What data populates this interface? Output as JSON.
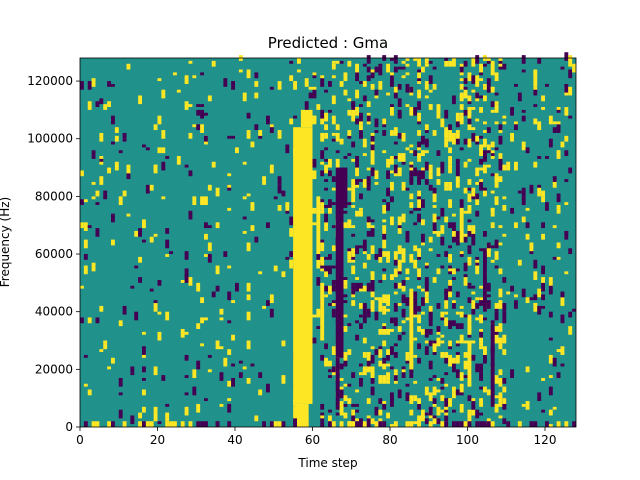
{
  "chart_data": {
    "type": "heatmap",
    "title": "Predicted : Gma",
    "xlabel": "Time step",
    "ylabel": "Frequency (Hz)",
    "xlim": [
      0,
      128
    ],
    "ylim": [
      0,
      128000
    ],
    "x_ticks": [
      {
        "value": 0,
        "label": "0"
      },
      {
        "value": 20,
        "label": "20"
      },
      {
        "value": 40,
        "label": "40"
      },
      {
        "value": 60,
        "label": "60"
      },
      {
        "value": 80,
        "label": "80"
      },
      {
        "value": 100,
        "label": "100"
      },
      {
        "value": 120,
        "label": "120"
      }
    ],
    "y_ticks": [
      {
        "value": 0,
        "label": "0"
      },
      {
        "value": 20000,
        "label": "20000"
      },
      {
        "value": 40000,
        "label": "40000"
      },
      {
        "value": 60000,
        "label": "60000"
      },
      {
        "value": 80000,
        "label": "80000"
      },
      {
        "value": 100000,
        "label": "100000"
      },
      {
        "value": 120000,
        "label": "120000"
      }
    ],
    "n_time_steps": 128,
    "n_freq_bins": 128,
    "colormap": {
      "low": "#440154",
      "mid": "#21918c",
      "high": "#fde725"
    },
    "background_level": "mid",
    "bands": [
      {
        "level": "high",
        "x0": 55,
        "x1": 60,
        "y0": 8000,
        "y1": 104000
      },
      {
        "level": "high",
        "x0": 57,
        "x1": 60,
        "y0": 104000,
        "y1": 110000
      },
      {
        "level": "high",
        "x0": 56,
        "x1": 59,
        "y0": 0,
        "y1": 8000
      },
      {
        "level": "low",
        "x0": 66,
        "x1": 68,
        "y0": 24000,
        "y1": 90000
      },
      {
        "level": "low",
        "x0": 68,
        "x1": 69,
        "y0": 76000,
        "y1": 90000
      },
      {
        "level": "low",
        "x0": 66,
        "x1": 67,
        "y0": 6000,
        "y1": 24000
      },
      {
        "level": "high",
        "x0": 62,
        "x1": 63,
        "y0": 30000,
        "y1": 50000
      },
      {
        "level": "high",
        "x0": 61,
        "x1": 62,
        "y0": 60000,
        "y1": 80000
      },
      {
        "level": "high",
        "x0": 85,
        "x1": 86,
        "y0": 20000,
        "y1": 48000
      },
      {
        "level": "low",
        "x0": 106,
        "x1": 107,
        "y0": 10000,
        "y1": 36000
      },
      {
        "level": "low",
        "x0": 104,
        "x1": 105,
        "y0": 40000,
        "y1": 60000
      },
      {
        "level": "high",
        "x0": 100,
        "x1": 101,
        "y0": 14000,
        "y1": 30000
      },
      {
        "level": "high",
        "x0": 98,
        "x1": 99,
        "y0": 64000,
        "y1": 76000
      }
    ],
    "dense_columns": [
      {
        "x0": 62,
        "x1": 110,
        "density": 0.16
      },
      {
        "x0": 0,
        "x1": 54,
        "density": 0.04
      },
      {
        "x0": 110,
        "x1": 128,
        "density": 0.05
      }
    ],
    "bottom_row_bins": 2,
    "seed": 42
  }
}
